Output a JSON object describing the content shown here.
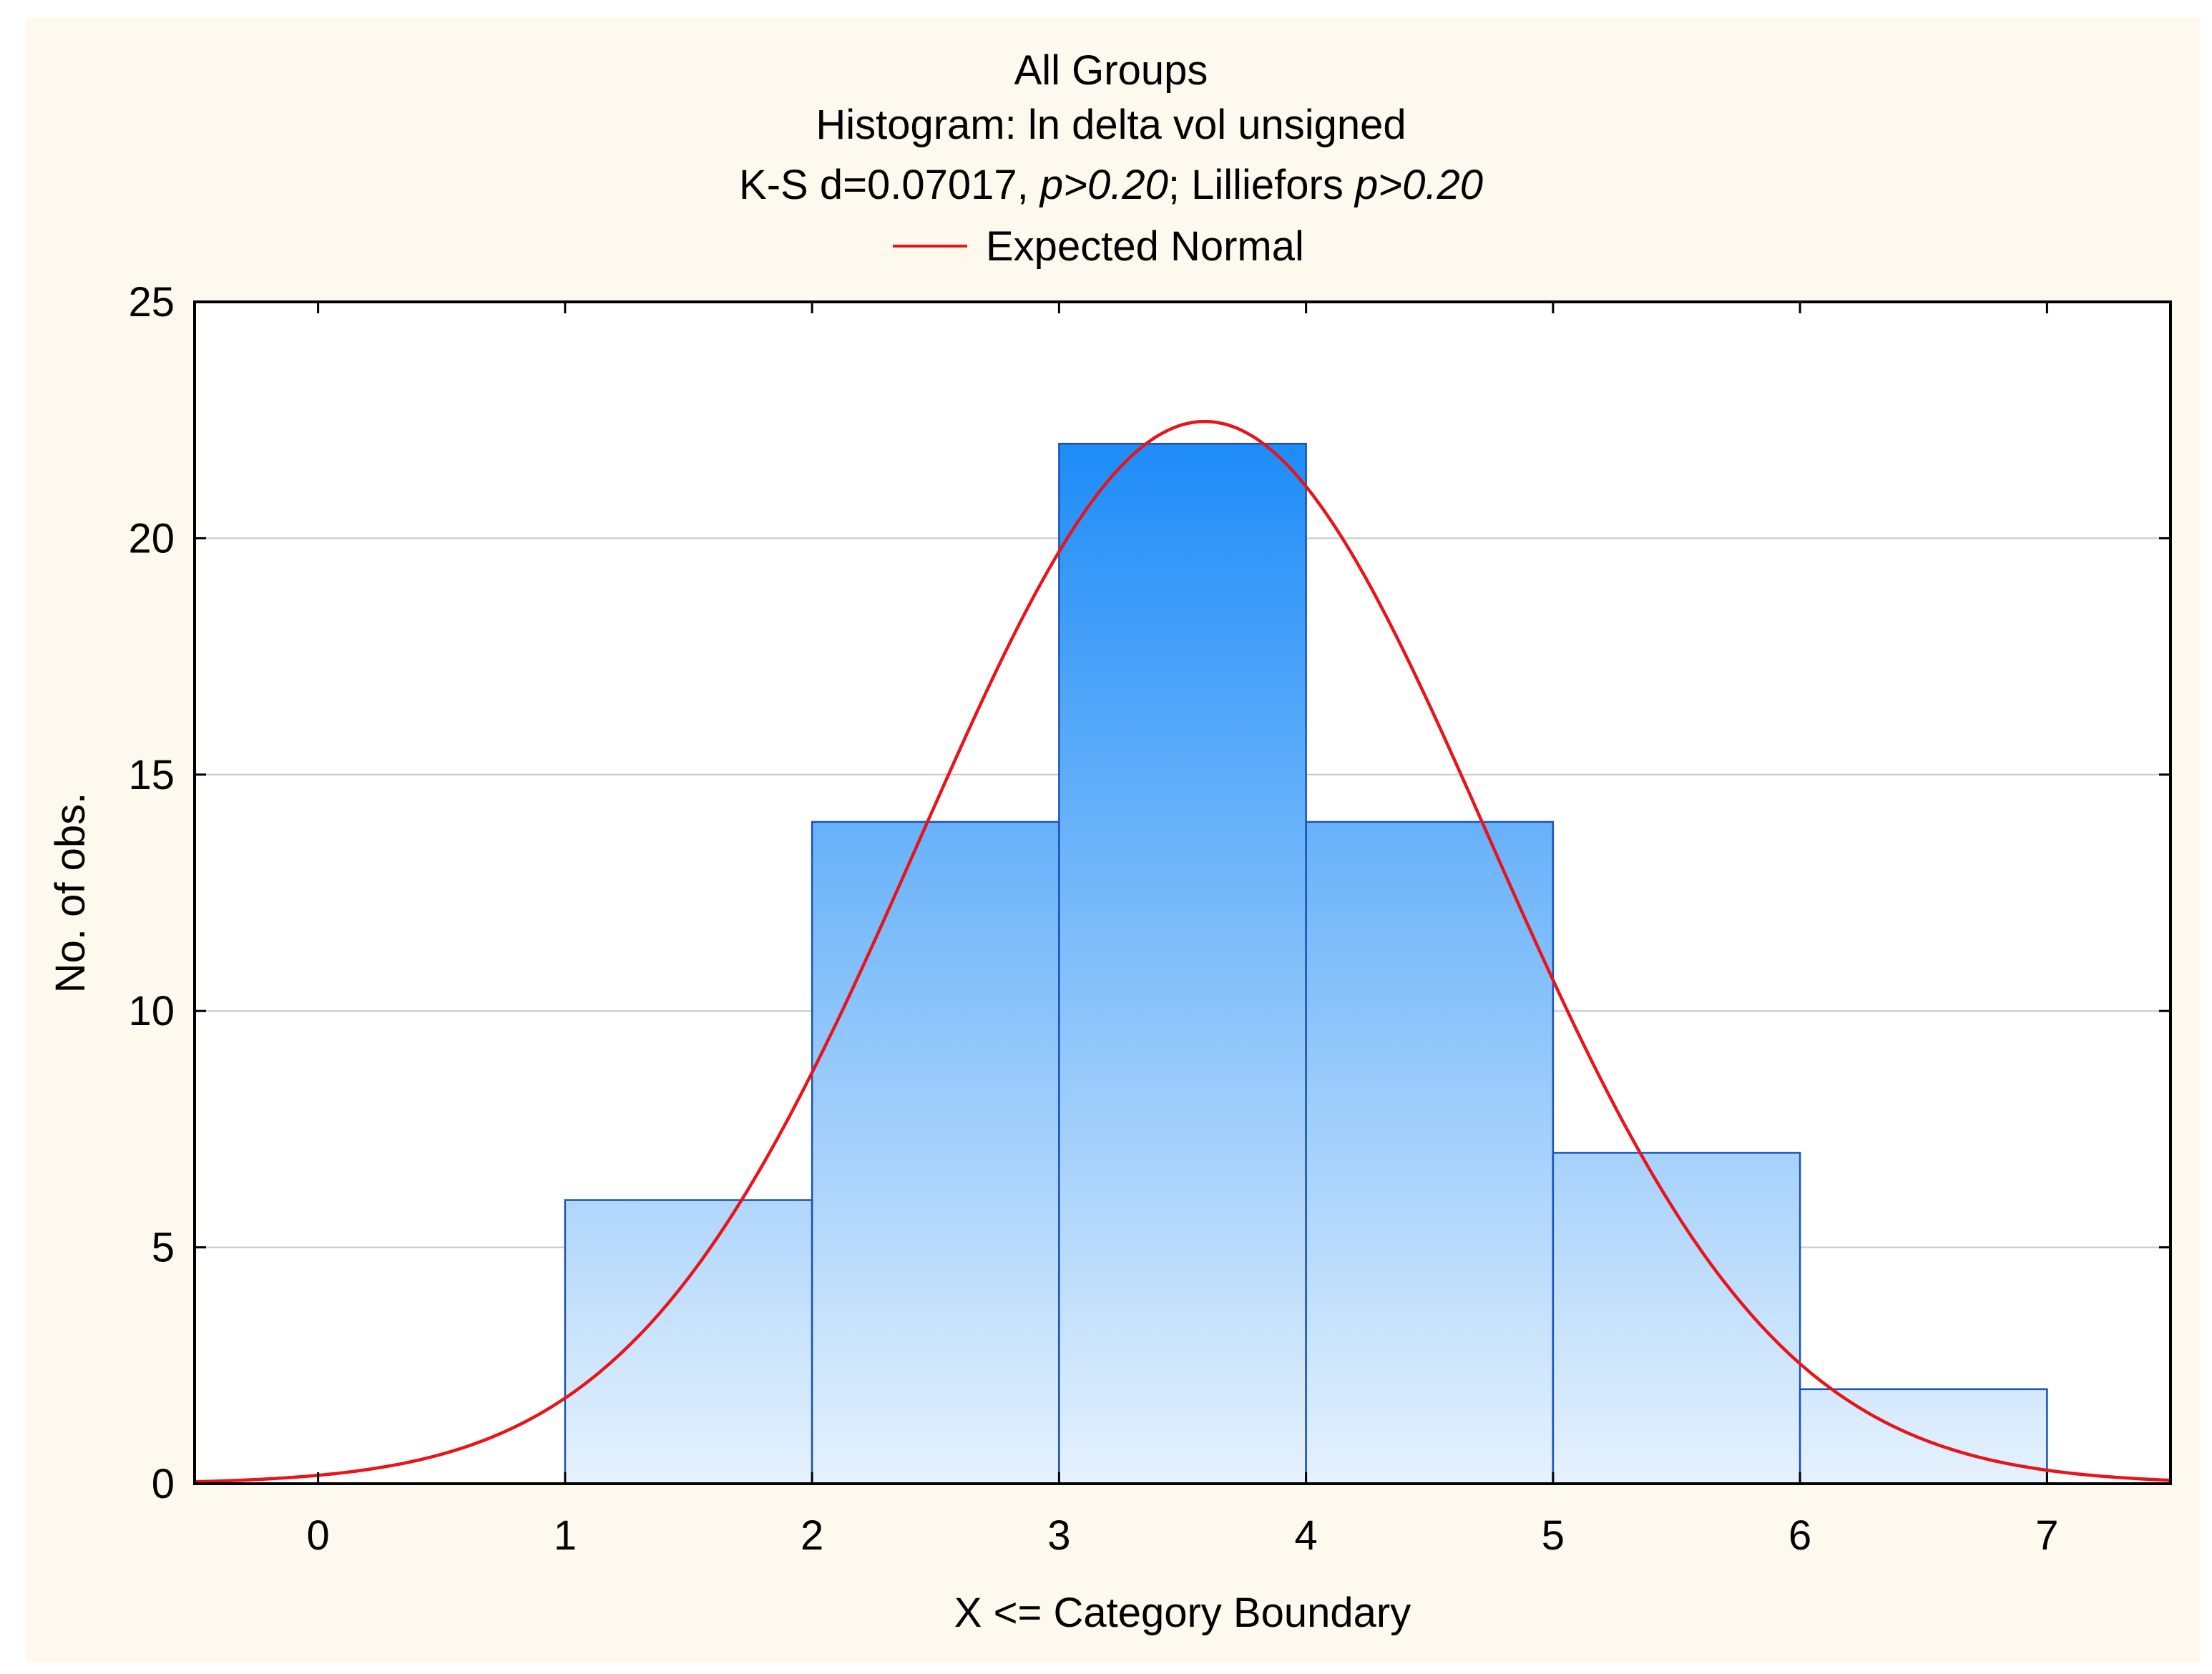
{
  "chart_data": {
    "type": "bar",
    "title": "All Groups",
    "subtitle": "Histogram: ln delta vol unsigned",
    "stats": {
      "prefix": "K-S d=0.07017, ",
      "p1": "p>0.20",
      "middle": "; Lilliefors ",
      "p2": "p>0.20"
    },
    "legend": {
      "label": "Expected Normal",
      "color": "#e8141b",
      "placement": "top-center"
    },
    "xlabel": "X <= Category Boundary",
    "ylabel": "No. of obs.",
    "xlim": [
      -0.5,
      7.5
    ],
    "ylim": [
      0,
      25
    ],
    "xticks": [
      0,
      1,
      2,
      3,
      4,
      5,
      6,
      7
    ],
    "yticks": [
      0,
      5,
      10,
      15,
      20,
      25
    ],
    "grid": true,
    "bins": [
      {
        "from": 1,
        "to": 2,
        "count": 6
      },
      {
        "from": 2,
        "to": 3,
        "count": 14
      },
      {
        "from": 3,
        "to": 4,
        "count": 22
      },
      {
        "from": 4,
        "to": 5,
        "count": 14
      },
      {
        "from": 5,
        "to": 6,
        "count": 7
      },
      {
        "from": 6,
        "to": 7,
        "count": 2
      }
    ],
    "normal_curve": {
      "mean": 3.59,
      "sd": 1.154,
      "n": 65,
      "bin_width": 1
    },
    "colors": {
      "bar_top": "#1e8cf8",
      "bar_bottom": "#e6f2fd",
      "bar_edge": "#1a52b8",
      "curve": "#e8141b",
      "gridline": "#c8c8c8",
      "background": "#fdf9ee",
      "plot_background": "#ffffff"
    }
  }
}
